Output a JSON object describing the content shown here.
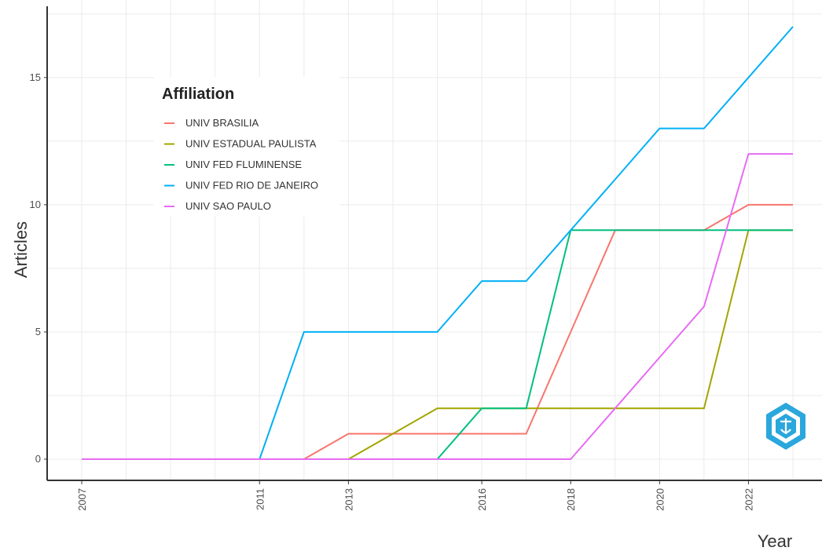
{
  "chart_data": {
    "type": "line",
    "xlabel": "Year",
    "ylabel": "Articles",
    "xlim": [
      2007,
      2023
    ],
    "ylim": [
      -0.5,
      17.5
    ],
    "x_ticks": [
      2007,
      2011,
      2013,
      2016,
      2018,
      2020,
      2022
    ],
    "y_ticks": [
      0,
      5,
      10,
      15
    ],
    "grid": true,
    "legend": {
      "title": "Affiliation",
      "placement": "top-left"
    },
    "series": [
      {
        "name": "UNIV BRASILIA",
        "color": "#F8766D",
        "points": [
          [
            2007,
            0
          ],
          [
            2012,
            0
          ],
          [
            2013,
            1
          ],
          [
            2017,
            1
          ],
          [
            2018,
            5
          ],
          [
            2019,
            9
          ],
          [
            2021,
            9
          ],
          [
            2022,
            10
          ],
          [
            2023,
            10
          ]
        ]
      },
      {
        "name": "UNIV ESTADUAL PAULISTA",
        "color": "#A3A500",
        "points": [
          [
            2007,
            0
          ],
          [
            2013,
            0
          ],
          [
            2015,
            2
          ],
          [
            2021,
            2
          ],
          [
            2022,
            9
          ],
          [
            2023,
            9
          ]
        ]
      },
      {
        "name": "UNIV FED FLUMINENSE",
        "color": "#00BF7D",
        "points": [
          [
            2007,
            0
          ],
          [
            2015,
            0
          ],
          [
            2016,
            2
          ],
          [
            2017,
            2
          ],
          [
            2018,
            9
          ],
          [
            2023,
            9
          ]
        ]
      },
      {
        "name": "UNIV FED RIO DE JANEIRO",
        "color": "#00B0F6",
        "points": [
          [
            2007,
            0
          ],
          [
            2011,
            0
          ],
          [
            2012,
            5
          ],
          [
            2015,
            5
          ],
          [
            2016,
            7
          ],
          [
            2017,
            7
          ],
          [
            2018,
            9
          ],
          [
            2019,
            11
          ],
          [
            2020,
            13
          ],
          [
            2021,
            13
          ],
          [
            2022,
            15
          ],
          [
            2023,
            17
          ]
        ]
      },
      {
        "name": "UNIV SAO PAULO",
        "color": "#E76BF3",
        "points": [
          [
            2007,
            0
          ],
          [
            2018,
            0
          ],
          [
            2019,
            2
          ],
          [
            2020,
            4
          ],
          [
            2021,
            6
          ],
          [
            2022,
            12
          ],
          [
            2023,
            12
          ]
        ]
      }
    ]
  },
  "logo": {
    "icon": "bibliometrix-hexagon-logo-icon",
    "color": "#2aa7dc"
  }
}
